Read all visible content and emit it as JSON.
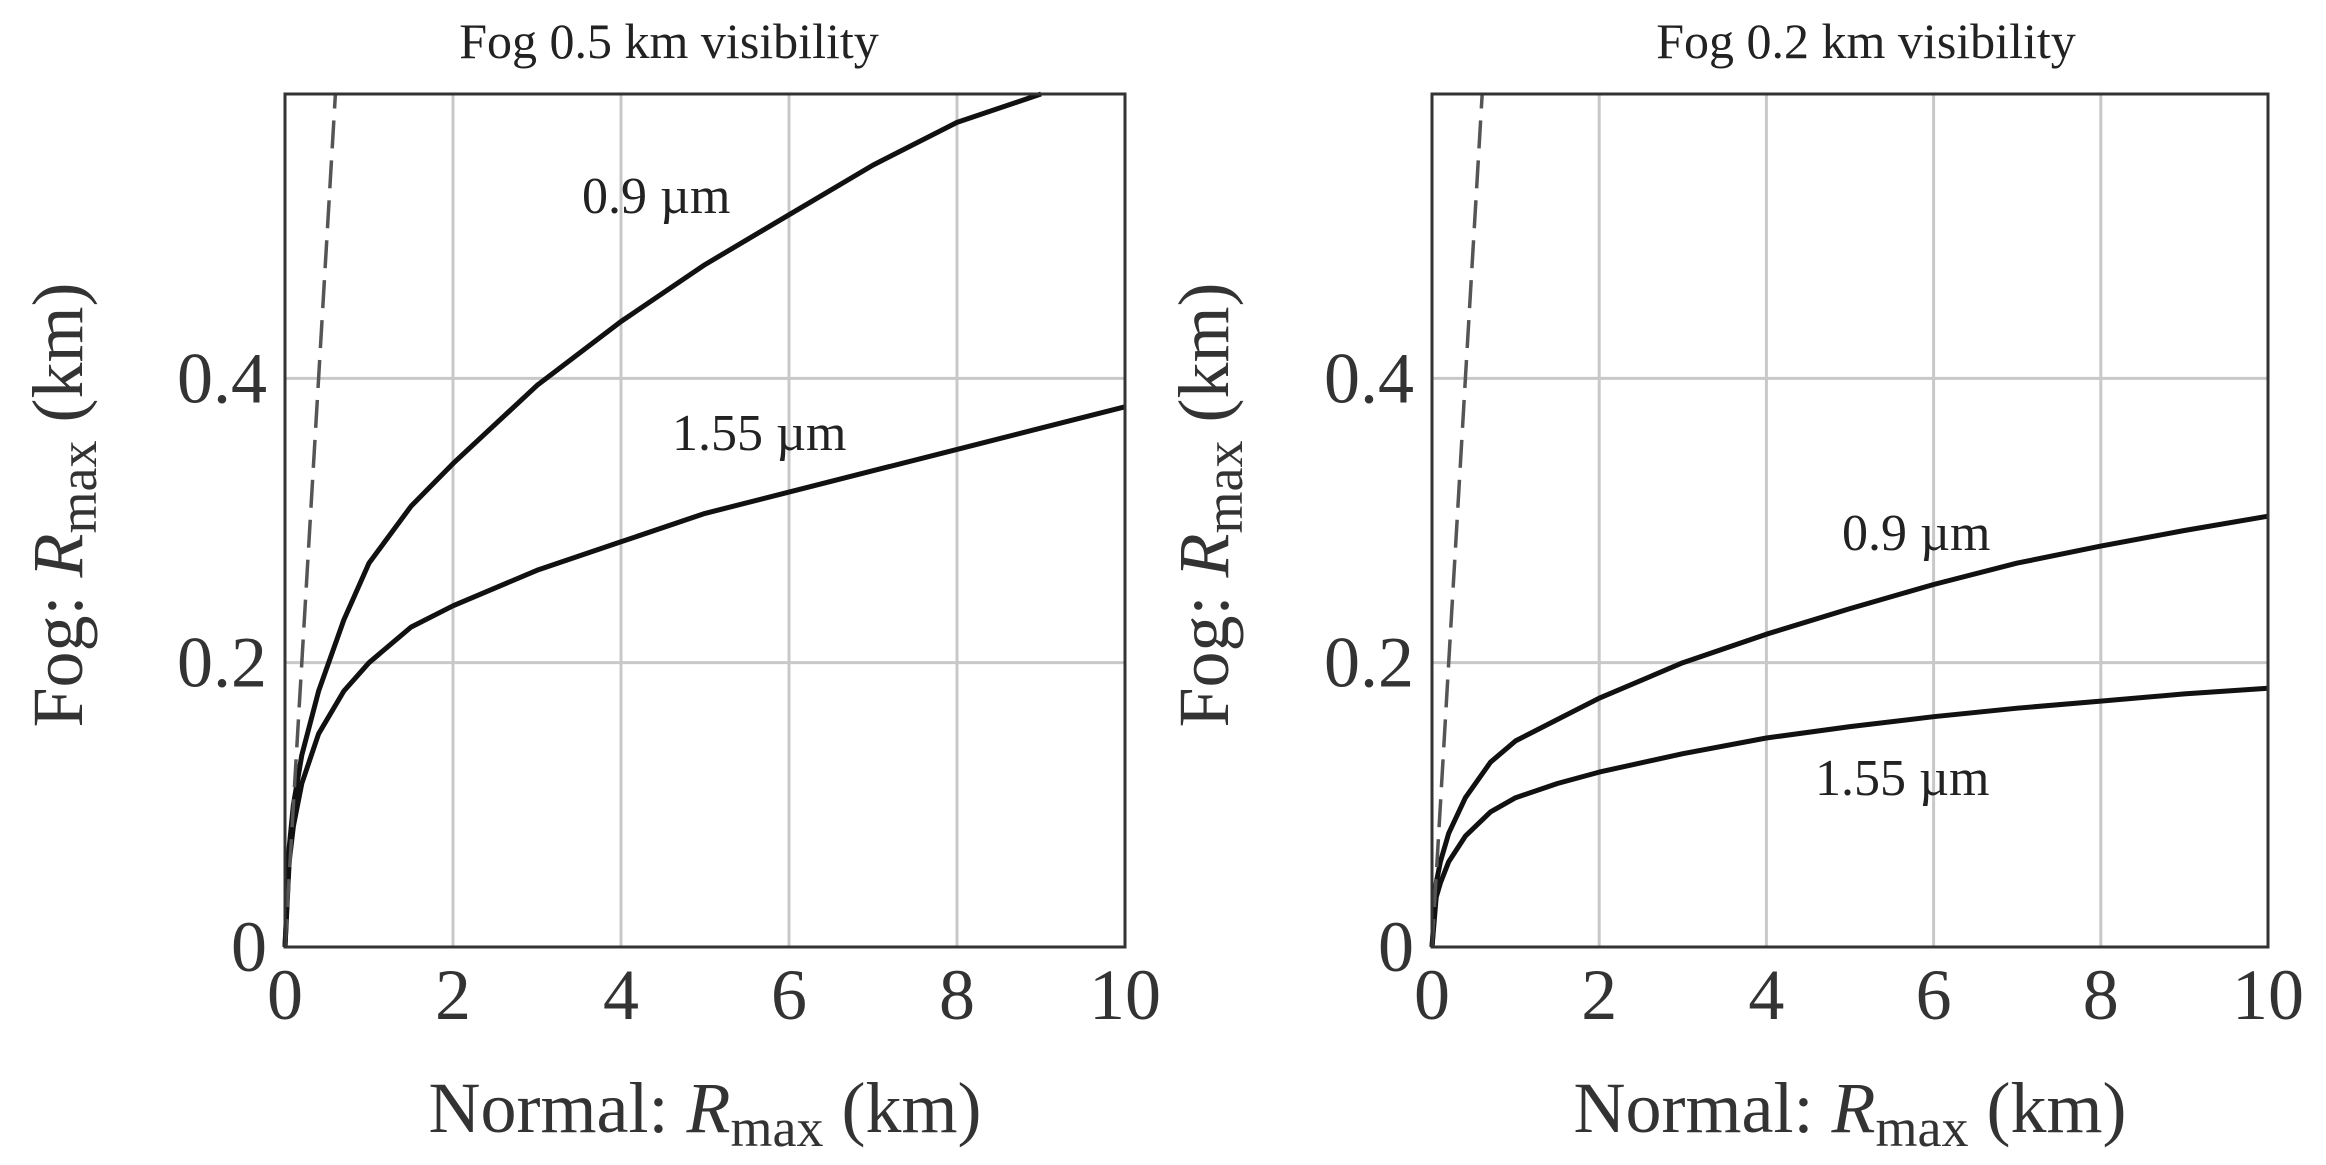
{
  "chart_data": [
    {
      "type": "line",
      "title": "Fog 0.5 km visibility",
      "xlabel": "Normal: R_max (km)",
      "ylabel": "Fog: R_max (km)",
      "axis_label_parts": {
        "prefix_x": "Normal: ",
        "prefix_y": "Fog: ",
        "symbol": "R",
        "subscript": "max",
        "unit": " (km)"
      },
      "xlim": [
        0,
        10
      ],
      "ylim": [
        0,
        0.6
      ],
      "xticks": [
        "0",
        "2",
        "4",
        "6",
        "8",
        "10"
      ],
      "yticks": [
        "0",
        "0.2",
        "0.4"
      ],
      "grid": true,
      "series": [
        {
          "name": "0.9 µm",
          "label": "0.9 µm",
          "style": "solid",
          "x": [
            0,
            0.05,
            0.1,
            0.2,
            0.4,
            0.7,
            1,
            1.5,
            2,
            3,
            4,
            5,
            6,
            7,
            8,
            9
          ],
          "y": [
            0,
            0.07,
            0.1,
            0.135,
            0.18,
            0.23,
            0.27,
            0.31,
            0.34,
            0.395,
            0.44,
            0.48,
            0.515,
            0.55,
            0.58,
            0.6
          ]
        },
        {
          "name": "1.55 µm",
          "label": "1.55 µm",
          "style": "solid",
          "x": [
            0,
            0.05,
            0.1,
            0.2,
            0.4,
            0.7,
            1,
            1.5,
            2,
            3,
            4,
            5,
            6,
            7,
            8,
            9,
            10
          ],
          "y": [
            0,
            0.06,
            0.085,
            0.115,
            0.15,
            0.18,
            0.2,
            0.225,
            0.24,
            0.265,
            0.285,
            0.305,
            0.32,
            0.335,
            0.35,
            0.365,
            0.38
          ]
        },
        {
          "name": "y = x",
          "style": "dashed",
          "x": [
            0,
            0.05,
            0.1,
            0.2,
            0.3,
            0.4,
            0.5,
            0.6
          ],
          "y": [
            0,
            0.05,
            0.1,
            0.2,
            0.3,
            0.4,
            0.5,
            0.6
          ]
        }
      ]
    },
    {
      "type": "line",
      "title": "Fog 0.2 km visibility",
      "xlabel": "Normal: R_max (km)",
      "ylabel": "Fog: R_max (km)",
      "axis_label_parts": {
        "prefix_x": "Normal: ",
        "prefix_y": "Fog: ",
        "symbol": "R",
        "subscript": "max",
        "unit": " (km)"
      },
      "xlim": [
        0,
        10
      ],
      "ylim": [
        0,
        0.6
      ],
      "xticks": [
        "0",
        "2",
        "4",
        "6",
        "8",
        "10"
      ],
      "yticks": [
        "0",
        "0.2",
        "0.4"
      ],
      "grid": true,
      "series": [
        {
          "name": "0.9 µm",
          "label": "0.9 µm",
          "style": "solid",
          "x": [
            0,
            0.05,
            0.1,
            0.2,
            0.4,
            0.7,
            1,
            1.5,
            2,
            3,
            4,
            5,
            6,
            7,
            8,
            9,
            10
          ],
          "y": [
            0,
            0.045,
            0.06,
            0.08,
            0.105,
            0.13,
            0.145,
            0.16,
            0.175,
            0.2,
            0.22,
            0.238,
            0.255,
            0.27,
            0.282,
            0.293,
            0.303
          ]
        },
        {
          "name": "1.55 µm",
          "label": "1.55 µm",
          "style": "solid",
          "x": [
            0,
            0.05,
            0.1,
            0.2,
            0.4,
            0.7,
            1,
            1.5,
            2,
            3,
            4,
            5,
            6,
            7,
            8,
            9,
            10
          ],
          "y": [
            0,
            0.035,
            0.045,
            0.06,
            0.078,
            0.095,
            0.105,
            0.115,
            0.123,
            0.136,
            0.147,
            0.155,
            0.162,
            0.168,
            0.173,
            0.178,
            0.182
          ]
        },
        {
          "name": "y = x",
          "style": "dashed",
          "x": [
            0,
            0.05,
            0.1,
            0.2,
            0.3,
            0.4,
            0.5,
            0.6
          ],
          "y": [
            0,
            0.05,
            0.1,
            0.2,
            0.3,
            0.4,
            0.5,
            0.6
          ]
        }
      ]
    }
  ]
}
